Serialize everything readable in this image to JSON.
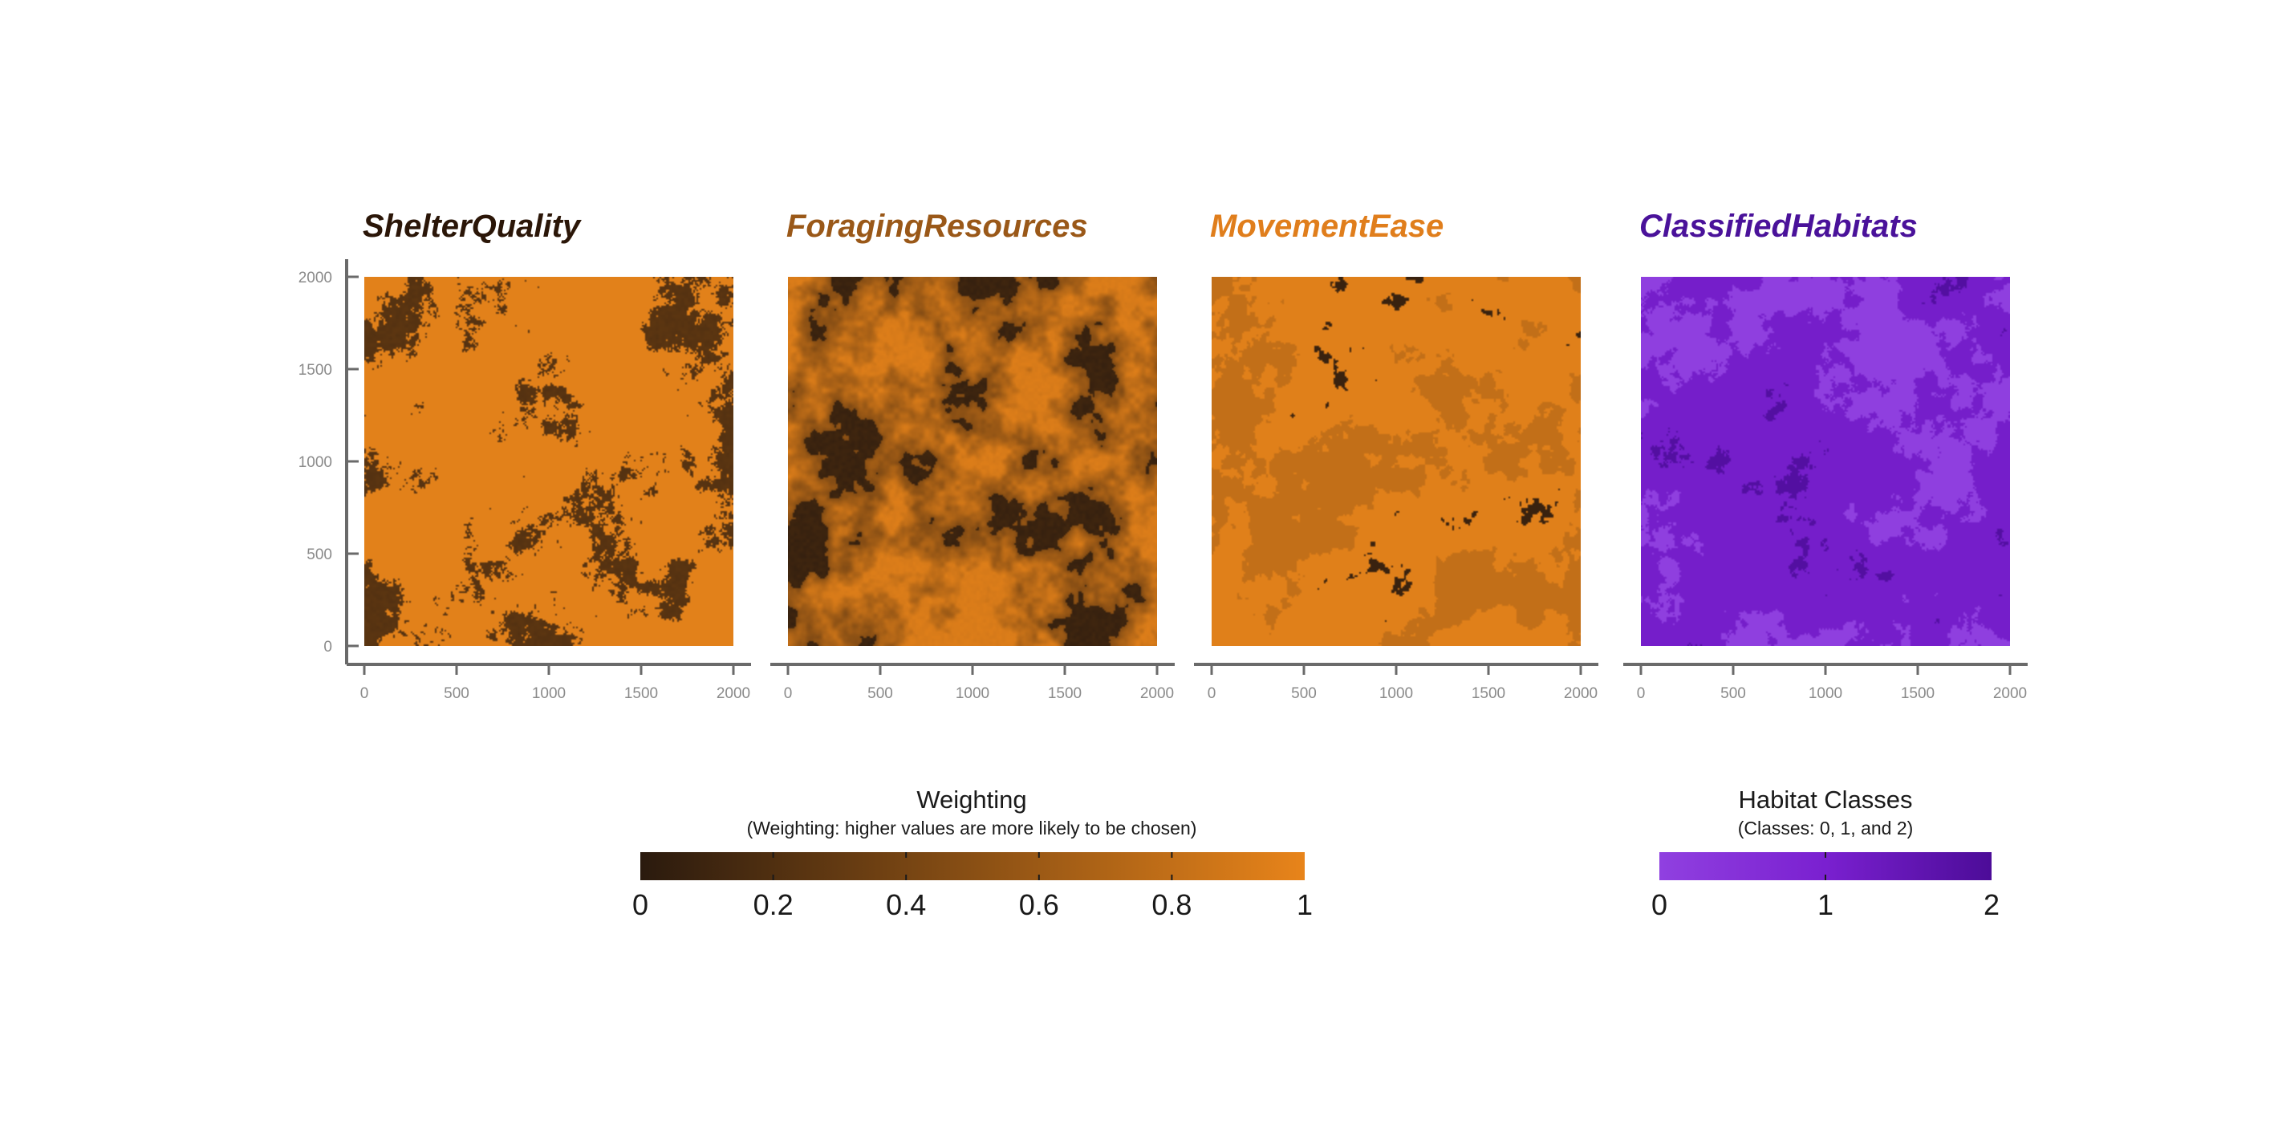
{
  "chart_data": {
    "type": "heatmap",
    "panels": [
      {
        "title": "ShelterQuality",
        "title_color": "#2b1608",
        "colormap": "weighting",
        "style": "shelter",
        "xlim": [
          0,
          2000
        ],
        "ylim": [
          0,
          2000
        ],
        "xticks": [
          0,
          500,
          1000,
          1500,
          2000
        ],
        "yticks": [
          0,
          500,
          1000,
          1500,
          2000
        ]
      },
      {
        "title": "ForagingResources",
        "title_color": "#9a5818",
        "colormap": "weighting",
        "style": "foraging",
        "xlim": [
          0,
          2000
        ],
        "ylim": [
          0,
          2000
        ],
        "xticks": [
          0,
          500,
          1000,
          1500,
          2000
        ]
      },
      {
        "title": "MovementEase",
        "title_color": "#e07e1c",
        "colormap": "weighting",
        "style": "movement",
        "xlim": [
          0,
          2000
        ],
        "ylim": [
          0,
          2000
        ],
        "xticks": [
          0,
          500,
          1000,
          1500,
          2000
        ]
      },
      {
        "title": "ClassifiedHabitats",
        "title_color": "#4a129a",
        "colormap": "habitat",
        "style": "habitat",
        "xlim": [
          0,
          2000
        ],
        "ylim": [
          0,
          2000
        ],
        "xticks": [
          0,
          500,
          1000,
          1500,
          2000
        ]
      }
    ],
    "colorbars": [
      {
        "id": "weighting",
        "title": "Weighting",
        "subtitle": "(Weighting: higher values are more likely to be chosen)",
        "range": [
          0,
          1
        ],
        "ticks": [
          0,
          0.2,
          0.4,
          0.6,
          0.8,
          1
        ],
        "tick_labels": [
          "0",
          "0.2",
          "0.4",
          "0.6",
          "0.8",
          "1"
        ],
        "colors": [
          "#2a1a0e",
          "#e8841a"
        ]
      },
      {
        "id": "habitat",
        "title": "Habitat Classes",
        "subtitle": "(Classes: 0, 1, and 2)",
        "range": [
          0,
          2
        ],
        "ticks": [
          0,
          1,
          2
        ],
        "tick_labels": [
          "0",
          "1",
          "2"
        ],
        "colors": [
          "#9040e0",
          "#7a20d0",
          "#4c0c98"
        ]
      }
    ]
  }
}
